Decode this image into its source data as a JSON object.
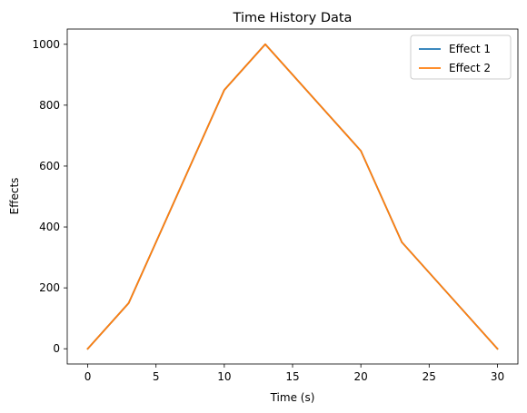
{
  "chart_data": {
    "type": "line",
    "title": "Time History Data",
    "xlabel": "Time (s)",
    "ylabel": "Effects",
    "xlim": [
      -1.5,
      31.5
    ],
    "ylim": [
      -50,
      1050
    ],
    "xticks": [
      0,
      5,
      10,
      15,
      20,
      25,
      30
    ],
    "yticks": [
      0,
      200,
      400,
      600,
      800,
      1000
    ],
    "grid": false,
    "legend_position": "upper right",
    "series": [
      {
        "name": "Effect 1",
        "color": "#1f77b4",
        "x": [
          0,
          3,
          10,
          13,
          20,
          23,
          30
        ],
        "y": [
          0,
          150,
          850,
          1000,
          650,
          350,
          0
        ]
      },
      {
        "name": "Effect 2",
        "color": "#ff7f0e",
        "x": [
          0,
          3,
          10,
          13,
          20,
          23,
          30
        ],
        "y": [
          0,
          150,
          850,
          1000,
          650,
          350,
          0
        ]
      }
    ]
  }
}
